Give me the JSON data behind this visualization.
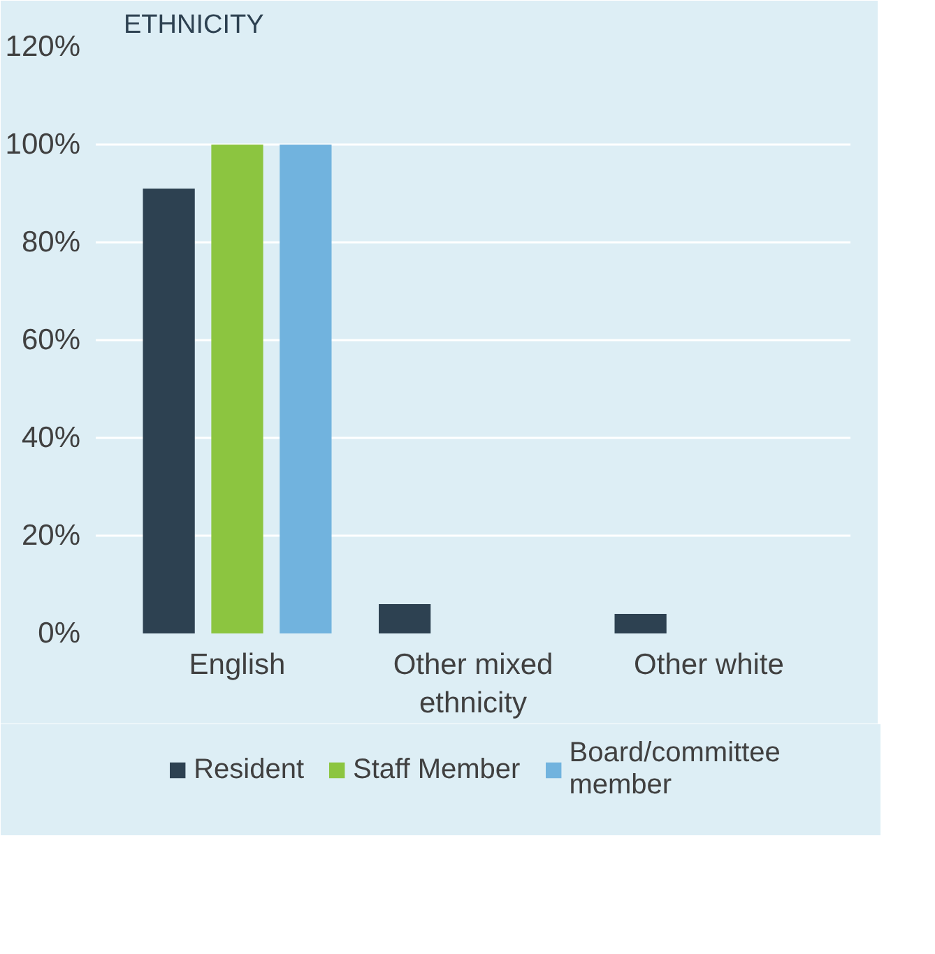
{
  "chart_data": {
    "type": "bar",
    "title": "ETHNICITY",
    "categories": [
      "English",
      "Other mixed ethnicity",
      "Other white"
    ],
    "series": [
      {
        "name": "Resident",
        "color": "#2d4151",
        "values": [
          91,
          6,
          4
        ]
      },
      {
        "name": "Staff Member",
        "color": "#8cc540",
        "values": [
          100,
          0,
          0
        ]
      },
      {
        "name": "Board/committee member",
        "color": "#71b3de",
        "values": [
          100,
          0,
          0
        ]
      }
    ],
    "ylim": [
      0,
      120
    ],
    "yticks": [
      {
        "value": 0,
        "label": "0%"
      },
      {
        "value": 20,
        "label": "20%"
      },
      {
        "value": 40,
        "label": "40%"
      },
      {
        "value": 60,
        "label": "60%"
      },
      {
        "value": 80,
        "label": "80%"
      },
      {
        "value": 100,
        "label": "100%"
      },
      {
        "value": 120,
        "label": "120%"
      }
    ],
    "grid": "y",
    "legend": "bottom"
  }
}
